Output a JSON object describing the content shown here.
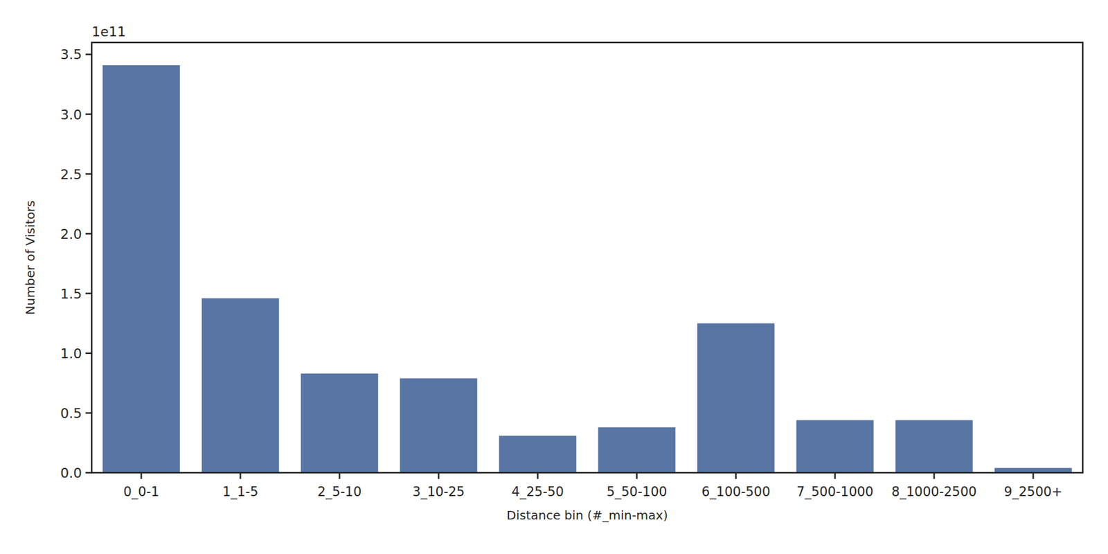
{
  "chart_data": {
    "type": "bar",
    "x_label": "Distance bin (#_min-max)",
    "y_label": "Number of Visitors",
    "y_offset_text": "1e11",
    "categories": [
      "0_0-1",
      "1_1-5",
      "2_5-10",
      "3_10-25",
      "4_25-50",
      "5_50-100",
      "6_100-500",
      "7_500-1000",
      "8_1000-2500",
      "9_2500+"
    ],
    "values": [
      3.41,
      1.46,
      0.83,
      0.79,
      0.31,
      0.38,
      1.25,
      0.44,
      0.44,
      0.04
    ],
    "color": "#5875a4",
    "ylim": [
      0,
      3.6
    ],
    "yticks": [
      {
        "value": 0,
        "label": "0.0"
      },
      {
        "value": 0.5,
        "label": "0.5"
      },
      {
        "value": 1,
        "label": "1.0"
      },
      {
        "value": 1.5,
        "label": "1.5"
      },
      {
        "value": 2,
        "label": "2.0"
      },
      {
        "value": 2.5,
        "label": "2.5"
      },
      {
        "value": 3,
        "label": "3.0"
      },
      {
        "value": 3.5,
        "label": "3.5"
      }
    ],
    "grid": false
  }
}
